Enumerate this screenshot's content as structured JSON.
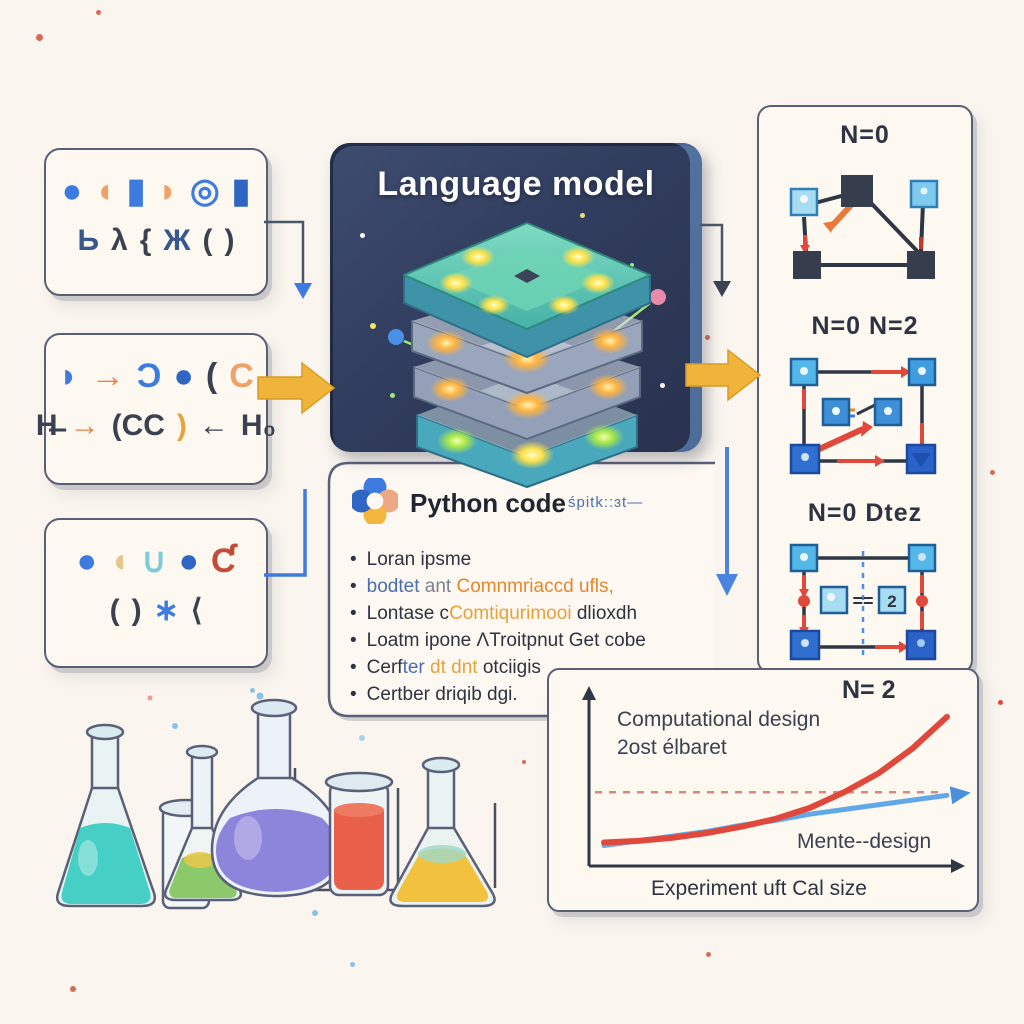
{
  "model_box": {
    "title": "Language model"
  },
  "left_boxes": [
    {
      "rows": [
        [
          {
            "g": "●",
            "c": "#3d7be0"
          },
          {
            "g": "◖",
            "c": "#f0a168"
          },
          {
            "g": "▮",
            "c": "#3d7be0"
          },
          {
            "g": "◗",
            "c": "#f0a168"
          },
          {
            "g": "◎",
            "c": "#3d7be0"
          },
          {
            "g": "▮",
            "c": "#2f66c4"
          }
        ],
        [
          {
            "g": "Ь",
            "c": "#37578f"
          },
          {
            "g": "λ",
            "c": "#3a4150"
          },
          {
            "g": "{",
            "c": "#3a4150"
          },
          {
            "g": "Ж",
            "c": "#37578f"
          },
          {
            "g": "(",
            "c": "#3a4150"
          },
          {
            "g": ")",
            "c": "#3a4150"
          }
        ]
      ]
    },
    {
      "rows": [
        [
          {
            "g": "◗",
            "c": "#3d7be0"
          },
          {
            "g": "→",
            "c": "#e8824a"
          },
          {
            "g": "Ɔ",
            "c": "#3d7be0"
          },
          {
            "g": "●",
            "c": "#2f66c4"
          },
          {
            "g": "(",
            "c": "#3a4150"
          },
          {
            "g": "C",
            "c": "#f0a168"
          }
        ],
        [
          {
            "g": "H̶",
            "c": "#3a4150"
          },
          {
            "g": "→",
            "c": "#e8824a"
          },
          {
            "g": "(CC",
            "c": "#3a4150"
          },
          {
            "g": ")",
            "c": "#e8a23a"
          },
          {
            "g": "←",
            "c": "#3a4150"
          },
          {
            "g": "H₀",
            "c": "#3a4150"
          }
        ]
      ]
    },
    {
      "rows": [
        [
          {
            "g": "●",
            "c": "#3d7be0"
          },
          {
            "g": "◖",
            "c": "#e8c48a"
          },
          {
            "g": "∪",
            "c": "#7fc9d8"
          },
          {
            "g": "●",
            "c": "#2f66c4"
          },
          {
            "g": "Ƈ",
            "c": "#c44a3a"
          }
        ],
        [
          {
            "g": "(",
            "c": "#3a4150"
          },
          {
            "g": ")",
            "c": "#3a4150"
          },
          {
            "g": "∗",
            "c": "#3d7be0"
          },
          {
            "g": "⟨",
            "c": "#3a4150"
          }
        ]
      ]
    }
  ],
  "python_box": {
    "title": "Python code",
    "side_note": "śpitk::ɜt—",
    "bullets": [
      {
        "segments": [
          {
            "text": "Loran ipsme",
            "color": "#2d3340"
          }
        ]
      },
      {
        "segments": [
          {
            "text": "bodtet",
            "color": "#4a6fae"
          },
          {
            "text": " ant ",
            "color": "#7a8290"
          },
          {
            "text": "Comnmriaccd ufls,",
            "color": "#e8862e"
          }
        ]
      },
      {
        "segments": [
          {
            "text": "Lontase c",
            "color": "#2d3340"
          },
          {
            "text": "Comtiqurimooi ",
            "color": "#e8a23a"
          },
          {
            "text": "dlioxdh",
            "color": "#2d3340"
          }
        ]
      },
      {
        "segments": [
          {
            "text": "Loatm ipone ΛTroitpnut Get cobe",
            "color": "#2d3340"
          }
        ]
      },
      {
        "segments": [
          {
            "text": "Cerf",
            "color": "#2d3340"
          },
          {
            "text": "ter ",
            "color": "#4a6fae"
          },
          {
            "text": "dt dnt ",
            "color": "#e8a23a"
          },
          {
            "text": "otciigis",
            "color": "#2d3340"
          }
        ]
      },
      {
        "segments": [
          {
            "text": "Certber driqib dgi.",
            "color": "#2d3340"
          }
        ]
      }
    ]
  },
  "right_panel": {
    "panels": [
      {
        "label": "N=0"
      },
      {
        "label": "N=0 N=2"
      },
      {
        "label": "N=0 Dtez"
      }
    ],
    "graph3_equals": "==",
    "graph3_node_glyph": "2"
  },
  "chart": {
    "label": "N= 2",
    "annotation_line1": "Computational design",
    "annotation_line2": "2ost élbaret",
    "series2_label": "Mente--design",
    "xlabel": "Experiment uft Cal size"
  },
  "chart_data": {
    "type": "line",
    "title": "N= 2",
    "xlabel": "Experiment uft Cal size",
    "ylabel": "",
    "x": [
      0,
      1,
      2,
      3,
      4,
      5,
      6,
      7,
      8,
      9,
      10
    ],
    "series": [
      {
        "name": "Computational design 2ost élbaret",
        "color": "#e0483c",
        "shape": "exponential",
        "values": [
          8,
          9,
          11,
          14,
          18,
          23,
          30,
          40,
          52,
          68,
          88
        ]
      },
      {
        "name": "Mente--design",
        "color": "#62a8e8",
        "shape": "linear",
        "values": [
          6,
          9,
          12,
          15,
          19,
          22,
          26,
          29,
          32,
          35,
          38
        ]
      }
    ],
    "reference_line": {
      "value": 40,
      "style": "dashed",
      "color": "#d86a5a"
    },
    "ylim": [
      0,
      100
    ],
    "grid": false,
    "legend_position": "inline-annotations",
    "axes_style": "arrow-axes"
  },
  "colors": {
    "background": "#faf5ee",
    "card_bg": "#fdf8f0",
    "card_border": "#595f75",
    "model_box_dark": "#34405f",
    "accent_yellow": "#f0b43a",
    "accent_blue": "#3d7be0",
    "accent_red": "#e0483c",
    "accent_orange": "#e8862e",
    "node_light_blue": "#53b7ea",
    "node_dark_blue": "#2f6fd0",
    "node_dark_gray": "#363d4c"
  }
}
